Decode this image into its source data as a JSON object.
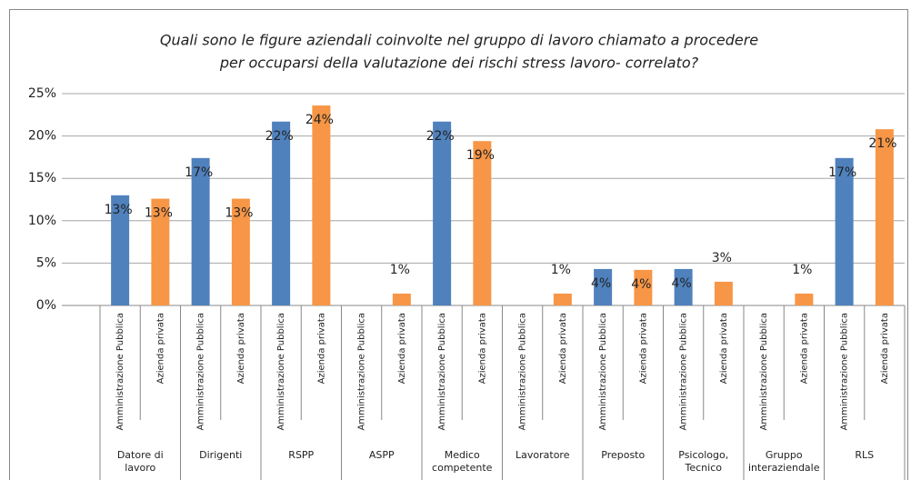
{
  "chart_data": {
    "type": "bar",
    "title": [
      "Quali sono le figure aziendali coinvolte nel gruppo di lavoro chiamato a procedere",
      "per occuparsi della valutazione dei rischi stress lavoro- correlato?"
    ],
    "categories": [
      "Datore di lavoro",
      "Dirigenti",
      "RSPP",
      "ASPP",
      "Medico competente",
      "Lavoratore",
      "Preposto",
      "Psicologo, Tecnico",
      "Gruppo interaziendale",
      "RLS"
    ],
    "subcategories": [
      "Amministrazione Pubblica",
      "Azienda privata"
    ],
    "series": [
      {
        "color": "#4f81bd",
        "values": [
          13.0,
          17.4,
          21.7,
          0,
          21.7,
          0,
          4.3,
          4.3,
          0,
          17.4
        ],
        "value_labels": [
          "13%",
          "17%",
          "22%",
          null,
          "22%",
          null,
          "4%",
          "4%",
          null,
          "17%"
        ]
      },
      {
        "color": "#f79646",
        "values": [
          12.6,
          12.6,
          23.6,
          1.4,
          19.4,
          1.4,
          4.2,
          2.8,
          1.4,
          20.8
        ],
        "value_labels": [
          "13%",
          "13%",
          "24%",
          "1%",
          "19%",
          "1%",
          "4%",
          "3%",
          "1%",
          "21%"
        ]
      }
    ],
    "ylim": [
      0,
      25
    ],
    "yticks": [
      {
        "value": 0,
        "label": "0%"
      },
      {
        "value": 5,
        "label": "5%"
      },
      {
        "value": 10,
        "label": "10%"
      },
      {
        "value": 15,
        "label": "15%"
      },
      {
        "value": 20,
        "label": "20%"
      },
      {
        "value": 25,
        "label": "25%"
      }
    ],
    "grid": true
  }
}
